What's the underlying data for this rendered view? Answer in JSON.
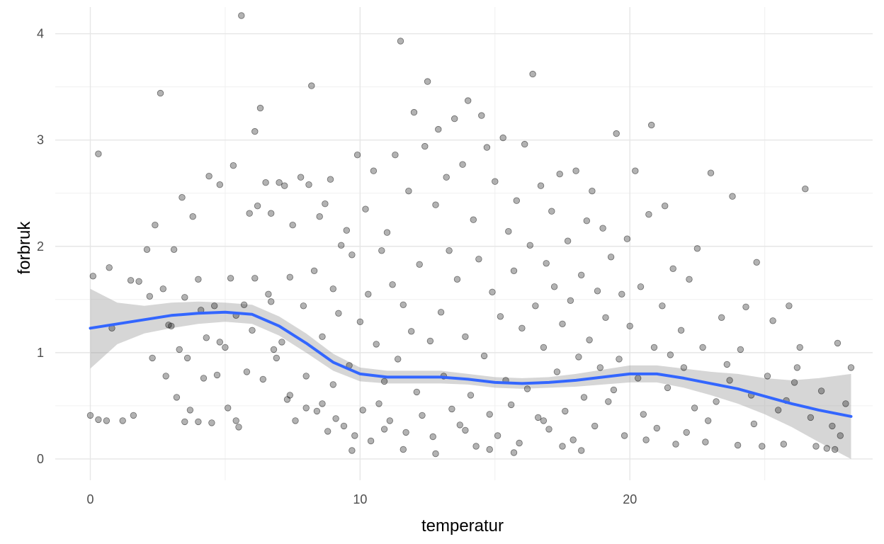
{
  "chart_data": {
    "type": "scatter",
    "title": "",
    "xlabel": "temperatur",
    "ylabel": "forbruk",
    "xlim": [
      -1.3,
      29.0
    ],
    "ylim": [
      -0.2,
      4.25
    ],
    "x_ticks": [
      0,
      10,
      20
    ],
    "x_tick_labels": [
      "0",
      "10",
      "20"
    ],
    "y_ticks": [
      0,
      1,
      2,
      3,
      4
    ],
    "y_tick_labels": [
      "0",
      "1",
      "2",
      "3",
      "4"
    ],
    "grid": true,
    "legend": "none",
    "point_color": "#000000",
    "point_opacity": 0.3,
    "points": [
      [
        0.0,
        0.41
      ],
      [
        0.1,
        1.72
      ],
      [
        0.3,
        0.37
      ],
      [
        0.3,
        2.87
      ],
      [
        0.6,
        0.36
      ],
      [
        0.7,
        1.8
      ],
      [
        1.2,
        0.36
      ],
      [
        1.6,
        0.41
      ],
      [
        1.8,
        1.67
      ],
      [
        2.1,
        1.97
      ],
      [
        2.3,
        0.95
      ],
      [
        2.4,
        2.2
      ],
      [
        2.6,
        3.44
      ],
      [
        2.7,
        1.6
      ],
      [
        2.8,
        0.78
      ],
      [
        3.0,
        1.25
      ],
      [
        3.1,
        1.97
      ],
      [
        3.2,
        0.58
      ],
      [
        3.3,
        1.03
      ],
      [
        3.4,
        2.46
      ],
      [
        3.5,
        0.35
      ],
      [
        3.6,
        0.95
      ],
      [
        3.7,
        0.46
      ],
      [
        3.8,
        2.28
      ],
      [
        4.0,
        1.69
      ],
      [
        4.0,
        0.35
      ],
      [
        4.2,
        0.76
      ],
      [
        4.3,
        1.14
      ],
      [
        4.4,
        2.66
      ],
      [
        4.5,
        0.34
      ],
      [
        4.6,
        1.44
      ],
      [
        4.7,
        0.79
      ],
      [
        4.8,
        2.58
      ],
      [
        5.0,
        1.05
      ],
      [
        5.1,
        0.48
      ],
      [
        5.2,
        1.7
      ],
      [
        5.3,
        2.76
      ],
      [
        5.4,
        0.36
      ],
      [
        5.5,
        0.3
      ],
      [
        5.6,
        4.17
      ],
      [
        5.7,
        1.45
      ],
      [
        5.8,
        0.82
      ],
      [
        5.9,
        2.31
      ],
      [
        6.0,
        1.21
      ],
      [
        6.1,
        3.08
      ],
      [
        6.2,
        2.38
      ],
      [
        6.3,
        3.3
      ],
      [
        6.4,
        0.75
      ],
      [
        6.5,
        2.6
      ],
      [
        6.6,
        1.55
      ],
      [
        6.7,
        2.31
      ],
      [
        6.8,
        1.03
      ],
      [
        6.9,
        0.95
      ],
      [
        7.0,
        2.6
      ],
      [
        7.1,
        1.1
      ],
      [
        7.2,
        2.57
      ],
      [
        7.3,
        0.56
      ],
      [
        7.4,
        1.71
      ],
      [
        7.5,
        2.2
      ],
      [
        7.6,
        0.36
      ],
      [
        7.8,
        2.65
      ],
      [
        7.9,
        1.44
      ],
      [
        8.0,
        0.48
      ],
      [
        8.1,
        2.58
      ],
      [
        8.2,
        3.51
      ],
      [
        8.3,
        1.77
      ],
      [
        8.4,
        0.45
      ],
      [
        8.5,
        2.28
      ],
      [
        8.6,
        1.15
      ],
      [
        8.7,
        2.4
      ],
      [
        8.8,
        0.26
      ],
      [
        8.9,
        2.63
      ],
      [
        9.0,
        1.6
      ],
      [
        9.1,
        0.38
      ],
      [
        9.2,
        1.37
      ],
      [
        9.3,
        2.01
      ],
      [
        9.4,
        0.31
      ],
      [
        9.5,
        2.15
      ],
      [
        9.6,
        0.88
      ],
      [
        9.7,
        1.92
      ],
      [
        9.8,
        0.22
      ],
      [
        9.9,
        2.86
      ],
      [
        10.0,
        1.29
      ],
      [
        10.1,
        0.46
      ],
      [
        10.2,
        2.35
      ],
      [
        10.3,
        1.55
      ],
      [
        10.4,
        0.17
      ],
      [
        10.5,
        2.71
      ],
      [
        10.6,
        1.08
      ],
      [
        10.7,
        0.52
      ],
      [
        10.8,
        1.96
      ],
      [
        10.9,
        0.73
      ],
      [
        11.0,
        2.13
      ],
      [
        11.1,
        0.36
      ],
      [
        11.2,
        1.64
      ],
      [
        11.3,
        2.86
      ],
      [
        11.4,
        0.94
      ],
      [
        11.5,
        3.93
      ],
      [
        11.6,
        1.45
      ],
      [
        11.7,
        0.25
      ],
      [
        11.8,
        2.52
      ],
      [
        11.9,
        1.2
      ],
      [
        12.0,
        3.26
      ],
      [
        12.1,
        0.63
      ],
      [
        12.2,
        1.83
      ],
      [
        12.3,
        0.41
      ],
      [
        12.4,
        2.94
      ],
      [
        12.5,
        3.55
      ],
      [
        12.6,
        1.11
      ],
      [
        12.7,
        0.21
      ],
      [
        12.8,
        2.39
      ],
      [
        12.9,
        3.1
      ],
      [
        13.0,
        1.38
      ],
      [
        13.1,
        0.78
      ],
      [
        13.2,
        2.65
      ],
      [
        13.3,
        1.96
      ],
      [
        13.4,
        0.47
      ],
      [
        13.5,
        3.2
      ],
      [
        13.6,
        1.69
      ],
      [
        13.7,
        0.32
      ],
      [
        13.8,
        2.77
      ],
      [
        13.9,
        1.15
      ],
      [
        14.0,
        3.37
      ],
      [
        14.1,
        0.6
      ],
      [
        14.2,
        2.25
      ],
      [
        14.3,
        0.12
      ],
      [
        14.4,
        1.88
      ],
      [
        14.5,
        3.23
      ],
      [
        14.6,
        0.97
      ],
      [
        14.7,
        2.93
      ],
      [
        14.8,
        0.42
      ],
      [
        14.9,
        1.57
      ],
      [
        15.0,
        2.61
      ],
      [
        15.1,
        0.22
      ],
      [
        15.2,
        1.34
      ],
      [
        15.3,
        3.02
      ],
      [
        15.4,
        0.74
      ],
      [
        15.5,
        2.14
      ],
      [
        15.6,
        0.51
      ],
      [
        15.7,
        1.77
      ],
      [
        15.8,
        2.43
      ],
      [
        15.9,
        0.15
      ],
      [
        16.0,
        1.23
      ],
      [
        16.1,
        2.96
      ],
      [
        16.2,
        0.66
      ],
      [
        16.3,
        2.01
      ],
      [
        16.4,
        3.62
      ],
      [
        16.5,
        1.44
      ],
      [
        16.6,
        0.39
      ],
      [
        16.7,
        2.57
      ],
      [
        16.8,
        1.05
      ],
      [
        16.9,
        1.84
      ],
      [
        17.0,
        0.28
      ],
      [
        17.1,
        2.33
      ],
      [
        17.2,
        1.62
      ],
      [
        17.3,
        0.82
      ],
      [
        17.4,
        2.68
      ],
      [
        17.5,
        1.27
      ],
      [
        17.6,
        0.45
      ],
      [
        17.7,
        2.05
      ],
      [
        17.8,
        1.49
      ],
      [
        17.9,
        0.18
      ],
      [
        18.0,
        2.71
      ],
      [
        18.1,
        0.96
      ],
      [
        18.2,
        1.73
      ],
      [
        18.3,
        0.58
      ],
      [
        18.4,
        2.24
      ],
      [
        18.5,
        1.12
      ],
      [
        18.6,
        2.52
      ],
      [
        18.7,
        0.31
      ],
      [
        18.8,
        1.58
      ],
      [
        18.9,
        0.86
      ],
      [
        19.0,
        2.17
      ],
      [
        19.1,
        1.33
      ],
      [
        19.2,
        0.54
      ],
      [
        19.3,
        1.9
      ],
      [
        19.5,
        3.06
      ],
      [
        19.6,
        0.94
      ],
      [
        19.7,
        1.55
      ],
      [
        19.8,
        0.22
      ],
      [
        19.9,
        2.07
      ],
      [
        20.0,
        1.25
      ],
      [
        20.2,
        2.71
      ],
      [
        20.3,
        0.76
      ],
      [
        20.4,
        1.62
      ],
      [
        20.5,
        0.42
      ],
      [
        20.7,
        2.3
      ],
      [
        20.8,
        3.14
      ],
      [
        20.9,
        1.05
      ],
      [
        21.0,
        0.29
      ],
      [
        21.2,
        1.44
      ],
      [
        21.3,
        2.38
      ],
      [
        21.4,
        0.67
      ],
      [
        21.6,
        1.79
      ],
      [
        21.7,
        0.14
      ],
      [
        21.9,
        1.21
      ],
      [
        22.0,
        0.86
      ],
      [
        22.2,
        1.69
      ],
      [
        22.4,
        0.48
      ],
      [
        22.5,
        1.98
      ],
      [
        22.7,
        1.05
      ],
      [
        22.8,
        0.16
      ],
      [
        23.0,
        2.69
      ],
      [
        23.2,
        0.54
      ],
      [
        23.4,
        1.33
      ],
      [
        23.6,
        0.89
      ],
      [
        23.8,
        2.47
      ],
      [
        24.0,
        0.13
      ],
      [
        24.1,
        1.03
      ],
      [
        24.3,
        1.43
      ],
      [
        24.5,
        0.6
      ],
      [
        24.7,
        1.85
      ],
      [
        24.9,
        0.12
      ],
      [
        25.1,
        0.78
      ],
      [
        25.3,
        1.3
      ],
      [
        25.5,
        0.46
      ],
      [
        25.7,
        0.14
      ],
      [
        25.9,
        1.44
      ],
      [
        26.1,
        0.72
      ],
      [
        26.3,
        1.05
      ],
      [
        26.5,
        2.54
      ],
      [
        26.7,
        0.39
      ],
      [
        26.9,
        0.12
      ],
      [
        27.1,
        0.64
      ],
      [
        27.3,
        0.1
      ],
      [
        27.5,
        0.31
      ],
      [
        27.7,
        1.09
      ],
      [
        27.8,
        0.22
      ],
      [
        28.0,
        0.52
      ],
      [
        28.2,
        0.86
      ],
      [
        27.6,
        0.09
      ],
      [
        26.2,
        0.86
      ],
      [
        25.8,
        0.55
      ],
      [
        24.6,
        0.33
      ],
      [
        23.7,
        0.74
      ],
      [
        22.9,
        0.36
      ],
      [
        22.1,
        0.25
      ],
      [
        21.5,
        0.98
      ],
      [
        20.6,
        0.18
      ],
      [
        19.4,
        0.65
      ],
      [
        18.2,
        0.08
      ],
      [
        17.5,
        0.12
      ],
      [
        16.8,
        0.36
      ],
      [
        15.7,
        0.06
      ],
      [
        14.8,
        0.09
      ],
      [
        13.9,
        0.27
      ],
      [
        12.8,
        0.05
      ],
      [
        11.6,
        0.09
      ],
      [
        10.9,
        0.28
      ],
      [
        9.7,
        0.08
      ],
      [
        9.0,
        0.7
      ],
      [
        8.6,
        0.52
      ],
      [
        8.0,
        0.78
      ],
      [
        7.4,
        0.6
      ],
      [
        6.7,
        1.48
      ],
      [
        6.1,
        1.7
      ],
      [
        5.4,
        1.35
      ],
      [
        4.8,
        1.1
      ],
      [
        4.1,
        1.4
      ],
      [
        3.5,
        1.52
      ],
      [
        2.9,
        1.26
      ],
      [
        2.2,
        1.53
      ],
      [
        1.5,
        1.68
      ],
      [
        0.8,
        1.23
      ]
    ],
    "smooth_line": {
      "color": "#3366ff",
      "x": [
        0,
        1,
        2,
        3,
        4,
        5,
        6,
        7,
        8,
        9,
        10,
        11,
        12,
        13,
        14,
        15,
        16,
        17,
        18,
        19,
        20,
        21,
        22,
        23,
        24,
        25,
        26,
        27,
        28.2
      ],
      "y": [
        1.23,
        1.27,
        1.31,
        1.35,
        1.37,
        1.38,
        1.36,
        1.25,
        1.09,
        0.91,
        0.8,
        0.77,
        0.77,
        0.77,
        0.75,
        0.72,
        0.71,
        0.72,
        0.74,
        0.77,
        0.8,
        0.8,
        0.76,
        0.71,
        0.66,
        0.59,
        0.52,
        0.46,
        0.4
      ],
      "ci_lower": [
        0.85,
        1.08,
        1.18,
        1.23,
        1.27,
        1.29,
        1.27,
        1.16,
        1.0,
        0.83,
        0.73,
        0.71,
        0.71,
        0.71,
        0.7,
        0.67,
        0.66,
        0.67,
        0.68,
        0.7,
        0.72,
        0.72,
        0.67,
        0.6,
        0.52,
        0.42,
        0.3,
        0.16,
        0.0
      ],
      "ci_upper": [
        1.6,
        1.47,
        1.44,
        1.47,
        1.48,
        1.47,
        1.45,
        1.34,
        1.18,
        0.99,
        0.86,
        0.83,
        0.83,
        0.83,
        0.8,
        0.77,
        0.76,
        0.77,
        0.8,
        0.84,
        0.88,
        0.88,
        0.85,
        0.82,
        0.8,
        0.76,
        0.74,
        0.76,
        0.8
      ]
    }
  }
}
